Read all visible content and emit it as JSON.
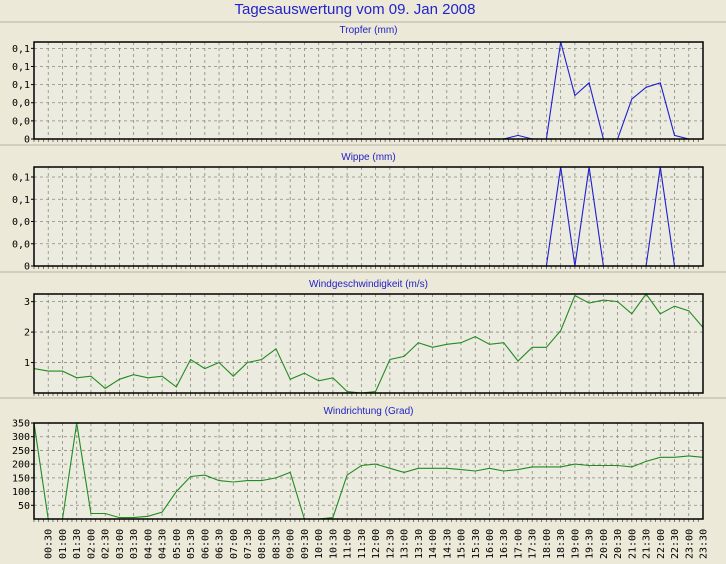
{
  "title": "Tagesauswertung vom 09. Jan 2008",
  "colors": {
    "background": "#ece9d8",
    "rain": "#1f1fd0",
    "wind": "#228b22",
    "title": "#2323c8"
  },
  "x_labels": [
    "00:30",
    "01:00",
    "01:30",
    "02:00",
    "02:30",
    "03:00",
    "03:30",
    "04:00",
    "04:30",
    "05:00",
    "05:30",
    "06:00",
    "06:30",
    "07:00",
    "07:30",
    "08:00",
    "08:30",
    "09:00",
    "09:30",
    "10:00",
    "10:30",
    "11:00",
    "11:30",
    "12:00",
    "12:30",
    "13:00",
    "13:30",
    "14:00",
    "14:30",
    "15:00",
    "15:30",
    "16:00",
    "16:30",
    "17:00",
    "17:30",
    "18:00",
    "18:30",
    "19:00",
    "19:30",
    "20:00",
    "20:30",
    "21:00",
    "21:30",
    "22:00",
    "22:30",
    "23:00",
    "23:30"
  ],
  "chart_data": [
    {
      "type": "line",
      "title": "Tropfer (mm)",
      "color": "#1f1fd0",
      "x_range": [
        "00:00",
        "23:30"
      ],
      "x_step": "30 min",
      "ylim": [
        0,
        0.107
      ],
      "yticks": [
        0,
        0.02,
        0.04,
        0.06,
        0.08,
        0.1
      ],
      "ytick_labels": [
        "0",
        "0,0",
        "0,0",
        "0,1",
        "0,1",
        "0,1"
      ],
      "grid": true,
      "values": [
        0,
        0,
        0,
        0,
        0,
        0,
        0,
        0,
        0,
        0,
        0,
        0,
        0,
        0,
        0,
        0,
        0,
        0,
        0,
        0,
        0,
        0,
        0,
        0,
        0,
        0,
        0,
        0,
        0,
        0,
        0,
        0,
        0,
        0,
        0.004,
        0,
        0,
        0.107,
        0.048,
        0.062,
        0,
        0,
        0.044,
        0.057,
        0.062,
        0.004,
        0,
        0
      ]
    },
    {
      "type": "line",
      "title": "Wippe (mm)",
      "color": "#1f1fd0",
      "x_range": [
        "00:00",
        "23:30"
      ],
      "x_step": "30 min",
      "ylim": [
        0,
        0.089
      ],
      "yticks": [
        0,
        0.02,
        0.04,
        0.06,
        0.08
      ],
      "ytick_labels": [
        "0",
        "0,0",
        "0,0",
        "0,1",
        "0,1"
      ],
      "grid": true,
      "values": [
        0,
        0,
        0,
        0,
        0,
        0,
        0,
        0,
        0,
        0,
        0,
        0,
        0,
        0,
        0,
        0,
        0,
        0,
        0,
        0,
        0,
        0,
        0,
        0,
        0,
        0,
        0,
        0,
        0,
        0,
        0,
        0,
        0,
        0,
        0,
        0,
        0,
        0.089,
        0,
        0.089,
        0,
        0,
        0,
        0,
        0.089,
        0,
        0,
        0
      ]
    },
    {
      "type": "line",
      "title": "Windgeschwindigkeit (m/s)",
      "color": "#228b22",
      "x_range": [
        "00:00",
        "23:30"
      ],
      "x_step": "30 min",
      "ylim": [
        0,
        3.25
      ],
      "yticks": [
        1,
        2,
        3
      ],
      "ytick_labels": [
        "1",
        "2",
        "3"
      ],
      "grid": true,
      "values": [
        0.8,
        0.72,
        0.72,
        0.5,
        0.55,
        0.15,
        0.45,
        0.6,
        0.5,
        0.55,
        0.2,
        1.1,
        0.8,
        1.0,
        0.55,
        1.0,
        1.1,
        1.45,
        0.45,
        0.65,
        0.4,
        0.5,
        0.05,
        0,
        0.05,
        1.1,
        1.2,
        1.65,
        1.5,
        1.6,
        1.65,
        1.85,
        1.6,
        1.65,
        1.05,
        1.5,
        1.5,
        2.05,
        3.2,
        2.95,
        3.05,
        3.0,
        2.6,
        3.25,
        2.6,
        2.85,
        2.7,
        2.15
      ]
    },
    {
      "type": "line",
      "title": "Windrichtung (Grad)",
      "color": "#228b22",
      "x_range": [
        "00:00",
        "23:30"
      ],
      "x_step": "30 min",
      "ylim": [
        0,
        350
      ],
      "yticks": [
        50,
        100,
        150,
        200,
        250,
        300,
        350
      ],
      "ytick_labels": [
        "50",
        "100",
        "150",
        "200",
        "250",
        "300",
        "350"
      ],
      "grid": true,
      "values": [
        350,
        0,
        0,
        350,
        20,
        20,
        5,
        5,
        10,
        25,
        100,
        155,
        160,
        140,
        135,
        140,
        140,
        150,
        170,
        0,
        0,
        5,
        160,
        195,
        200,
        185,
        170,
        185,
        185,
        185,
        180,
        175,
        185,
        175,
        180,
        190,
        190,
        190,
        200,
        195,
        195,
        195,
        190,
        210,
        225,
        225,
        230,
        225
      ]
    }
  ]
}
